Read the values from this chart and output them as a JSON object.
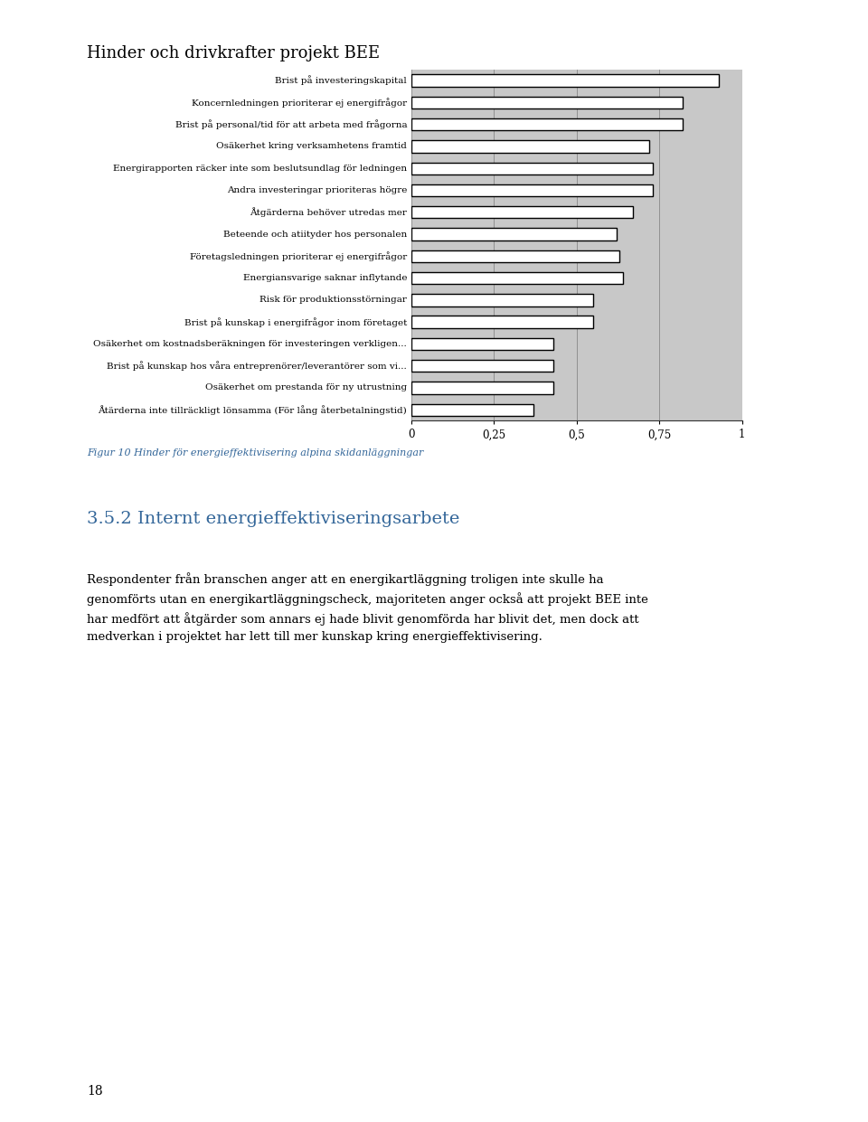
{
  "page_title": "Hinder och drivkrafter projekt BEE",
  "categories": [
    "Brist på investeringskapital",
    "Koncernledningen prioriterar ej energifrågor",
    "Brist på personal/tid för att arbeta med frågorna",
    "Osäkerhet kring verksamhetens framtid",
    "Energirapporten räcker inte som beslutsundlag för ledningen",
    "Andra investeringar prioriteras högre",
    "Åtgärderna behöver utredas mer",
    "Beteende och atiityder hos personalen",
    "Företagsledningen prioriterar ej energifrågor",
    "Energiansvarige saknar inflytande",
    "Risk för produktionsstörningar",
    "Brist på kunskap i energifrågor inom företaget",
    "Osäkerhet om kostnadsberäkningen för investeringen verkligen...",
    "Brist på kunskap hos våra entreprenörer/leverantörer som vi...",
    "Osäkerhet om prestanda för ny utrustning",
    "Åtärderna inte tillräckligt lönsamma (För lång återbetalningstid)"
  ],
  "values": [
    0.93,
    0.82,
    0.82,
    0.72,
    0.73,
    0.73,
    0.67,
    0.62,
    0.63,
    0.64,
    0.55,
    0.55,
    0.43,
    0.43,
    0.43,
    0.37
  ],
  "bar_color": "#ffffff",
  "bar_edgecolor": "#000000",
  "background_color": "#c8c8c8",
  "xlim": [
    0,
    1
  ],
  "xticks": [
    0,
    0.25,
    0.5,
    0.75,
    1
  ],
  "xticklabels": [
    "0",
    "0,25",
    "0,5",
    "0,75",
    "1"
  ],
  "figure_caption": "Figur 10 Hinder för energieffektivisering alpina skidanläggningar",
  "section_title": "3.5.2 Internt energieffektiviseringsarbete",
  "body_text": "Respondenter från branschen anger att en energikartläggning troligen inte skulle ha\ngenomförts utan en energikartläggningscheck, majoriteten anger också att projekt BEE inte\nhar medfört att åtgärder som annars ej hade blivit genomförda har blivit det, men dock att\nmedverkan i projektet har lett till mer kunskap kring energieffektivisering.",
  "page_number": "18",
  "label_fontsize": 7.5,
  "tick_fontsize": 8.5,
  "bar_height": 0.55,
  "title_fontsize": 13,
  "caption_color": "#336699",
  "section_color": "#336699"
}
